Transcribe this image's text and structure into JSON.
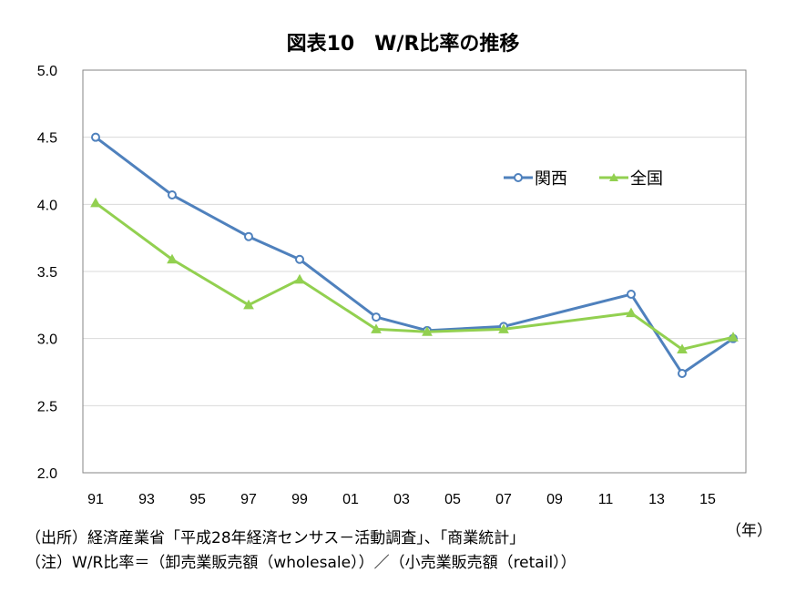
{
  "chart_data": {
    "type": "line",
    "title": "図表10　W/R比率の推移",
    "x": [
      1991,
      1994,
      1997,
      1999,
      2002,
      2004,
      2007,
      2012,
      2014,
      2016
    ],
    "series": [
      {
        "name": "関西",
        "color": "#4f81bd",
        "marker": "circle",
        "values": [
          4.5,
          4.07,
          3.76,
          3.59,
          3.16,
          3.06,
          3.09,
          3.33,
          2.74,
          3.0
        ]
      },
      {
        "name": "全国",
        "color": "#92d050",
        "marker": "triangle",
        "values": [
          4.01,
          3.59,
          3.25,
          3.44,
          3.07,
          3.05,
          3.07,
          3.19,
          2.92,
          3.01
        ]
      }
    ],
    "xlim": [
      1990.5,
      2016.5
    ],
    "ylim": [
      2.0,
      5.0
    ],
    "y_ticks": [
      "2.0",
      "2.5",
      "3.0",
      "3.5",
      "4.0",
      "4.5",
      "5.0"
    ],
    "x_tick_values": [
      1991,
      1993,
      1995,
      1997,
      1999,
      2001,
      2003,
      2005,
      2007,
      2009,
      2011,
      2013,
      2015
    ],
    "x_ticks": [
      "91",
      "93",
      "95",
      "97",
      "99",
      "01",
      "03",
      "05",
      "07",
      "09",
      "11",
      "13",
      "15"
    ],
    "xlabel": "（年）",
    "grid": true,
    "legend_position": "upper-right"
  },
  "notes": {
    "source": "（出所）経済産業省「平成28年経済センサス－活動調査」、「商業統計」",
    "formula": "（注）W/R比率＝（卸売業販売額（wholesale））／（小売業販売額（retail））"
  }
}
